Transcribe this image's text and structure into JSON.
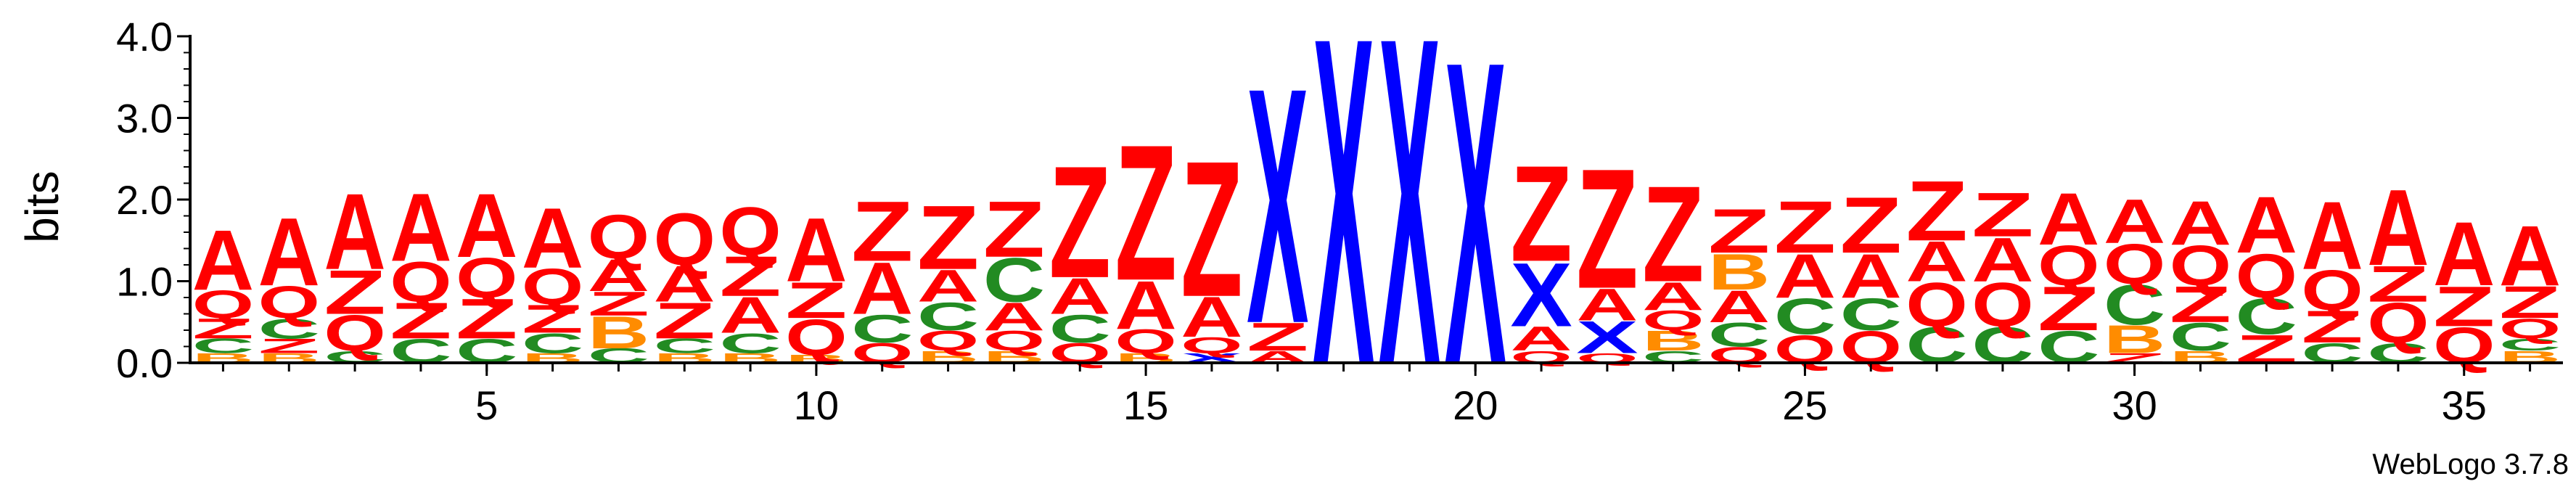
{
  "chart_data": {
    "type": "sequence-logo",
    "ylabel": "bits",
    "ylim": [
      0,
      4.0
    ],
    "xlim": [
      0.5,
      36.5
    ],
    "y_ticks": [
      {
        "value": 0.0,
        "label": "0.0"
      },
      {
        "value": 1.0,
        "label": "1.0"
      },
      {
        "value": 2.0,
        "label": "2.0"
      },
      {
        "value": 3.0,
        "label": "3.0"
      },
      {
        "value": 4.0,
        "label": "4.0"
      }
    ],
    "x_ticks": [
      {
        "value": 5,
        "label": "5"
      },
      {
        "value": 10,
        "label": "10"
      },
      {
        "value": 15,
        "label": "15"
      },
      {
        "value": 20,
        "label": "20"
      },
      {
        "value": 25,
        "label": "25"
      },
      {
        "value": 30,
        "label": "30"
      },
      {
        "value": 35,
        "label": "35"
      }
    ],
    "colors": {
      "A": "#ff0000",
      "Z": "#ff0000",
      "Q": "#ff0000",
      "C": "#228b22",
      "B": "#ff8c00",
      "X": "#0000ff"
    },
    "credit": "WebLogo 3.7.8",
    "positions": [
      {
        "pos": 1,
        "stack": [
          [
            "B",
            0.12
          ],
          [
            "C",
            0.18
          ],
          [
            "Z",
            0.25
          ],
          [
            "Q",
            0.35
          ],
          [
            "A",
            0.75
          ]
        ]
      },
      {
        "pos": 2,
        "stack": [
          [
            "B",
            0.12
          ],
          [
            "Z",
            0.18
          ],
          [
            "C",
            0.25
          ],
          [
            "Q",
            0.4
          ],
          [
            "A",
            0.85
          ]
        ]
      },
      {
        "pos": 3,
        "stack": [
          [
            "C",
            0.15
          ],
          [
            "Q",
            0.45
          ],
          [
            "Z",
            0.55
          ],
          [
            "A",
            0.95
          ]
        ]
      },
      {
        "pos": 4,
        "stack": [
          [
            "C",
            0.3
          ],
          [
            "Z",
            0.45
          ],
          [
            "Q",
            0.5
          ],
          [
            "A",
            0.85
          ]
        ]
      },
      {
        "pos": 5,
        "stack": [
          [
            "C",
            0.3
          ],
          [
            "Z",
            0.5
          ],
          [
            "Q",
            0.5
          ],
          [
            "A",
            0.8
          ]
        ]
      },
      {
        "pos": 6,
        "stack": [
          [
            "B",
            0.12
          ],
          [
            "C",
            0.25
          ],
          [
            "Z",
            0.35
          ],
          [
            "Q",
            0.45
          ],
          [
            "A",
            0.75
          ]
        ]
      },
      {
        "pos": 7,
        "stack": [
          [
            "C",
            0.18
          ],
          [
            "B",
            0.4
          ],
          [
            "Z",
            0.3
          ],
          [
            "A",
            0.4
          ],
          [
            "Q",
            0.55
          ]
        ]
      },
      {
        "pos": 8,
        "stack": [
          [
            "B",
            0.12
          ],
          [
            "C",
            0.18
          ],
          [
            "Z",
            0.45
          ],
          [
            "A",
            0.45
          ],
          [
            "Q",
            0.65
          ]
        ]
      },
      {
        "pos": 9,
        "stack": [
          [
            "B",
            0.12
          ],
          [
            "C",
            0.25
          ],
          [
            "A",
            0.45
          ],
          [
            "Z",
            0.5
          ],
          [
            "Q",
            0.6
          ]
        ]
      },
      {
        "pos": 10,
        "stack": [
          [
            "B",
            0.1
          ],
          [
            "Q",
            0.45
          ],
          [
            "Z",
            0.45
          ],
          [
            "A",
            0.8
          ]
        ]
      },
      {
        "pos": 11,
        "stack": [
          [
            "Q",
            0.25
          ],
          [
            "C",
            0.35
          ],
          [
            "A",
            0.65
          ],
          [
            "Z",
            0.75
          ]
        ]
      },
      {
        "pos": 12,
        "stack": [
          [
            "B",
            0.15
          ],
          [
            "Q",
            0.25
          ],
          [
            "C",
            0.35
          ],
          [
            "A",
            0.4
          ],
          [
            "Z",
            0.8
          ]
        ]
      },
      {
        "pos": 13,
        "stack": [
          [
            "B",
            0.15
          ],
          [
            "Q",
            0.25
          ],
          [
            "A",
            0.35
          ],
          [
            "C",
            0.55
          ],
          [
            "Z",
            0.7
          ]
        ]
      },
      {
        "pos": 14,
        "stack": [
          [
            "Q",
            0.25
          ],
          [
            "C",
            0.35
          ],
          [
            "A",
            0.45
          ],
          [
            "Z",
            1.4
          ]
        ]
      },
      {
        "pos": 15,
        "stack": [
          [
            "B",
            0.12
          ],
          [
            "Q",
            0.3
          ],
          [
            "A",
            0.6
          ],
          [
            "Z",
            1.7
          ]
        ]
      },
      {
        "pos": 16,
        "stack": [
          [
            "X",
            0.12
          ],
          [
            "Q",
            0.2
          ],
          [
            "A",
            0.5
          ],
          [
            "Z",
            1.7
          ]
        ]
      },
      {
        "pos": 17,
        "stack": [
          [
            "A",
            0.15
          ],
          [
            "Z",
            0.35
          ],
          [
            "X",
            2.95
          ]
        ]
      },
      {
        "pos": 18,
        "stack": [
          [
            "X",
            4.1
          ]
        ]
      },
      {
        "pos": 19,
        "stack": [
          [
            "X",
            4.1
          ]
        ]
      },
      {
        "pos": 20,
        "stack": [
          [
            "X",
            3.8
          ]
        ]
      },
      {
        "pos": 21,
        "stack": [
          [
            "Q",
            0.15
          ],
          [
            "A",
            0.3
          ],
          [
            "X",
            0.8
          ],
          [
            "Z",
            1.2
          ]
        ]
      },
      {
        "pos": 22,
        "stack": [
          [
            "Q",
            0.12
          ],
          [
            "X",
            0.4
          ],
          [
            "A",
            0.4
          ],
          [
            "Z",
            1.5
          ]
        ]
      },
      {
        "pos": 23,
        "stack": [
          [
            "C",
            0.15
          ],
          [
            "B",
            0.25
          ],
          [
            "Q",
            0.25
          ],
          [
            "A",
            0.35
          ],
          [
            "Z",
            1.2
          ]
        ]
      },
      {
        "pos": 24,
        "stack": [
          [
            "Q",
            0.2
          ],
          [
            "C",
            0.3
          ],
          [
            "A",
            0.4
          ],
          [
            "B",
            0.45
          ],
          [
            "Z",
            0.55
          ]
        ]
      },
      {
        "pos": 25,
        "stack": [
          [
            "Q",
            0.35
          ],
          [
            "C",
            0.45
          ],
          [
            "A",
            0.55
          ],
          [
            "Z",
            0.65
          ]
        ]
      },
      {
        "pos": 26,
        "stack": [
          [
            "Q",
            0.4
          ],
          [
            "C",
            0.4
          ],
          [
            "A",
            0.55
          ],
          [
            "Z",
            0.7
          ]
        ]
      },
      {
        "pos": 27,
        "stack": [
          [
            "C",
            0.45
          ],
          [
            "Q",
            0.55
          ],
          [
            "A",
            0.5
          ],
          [
            "Z",
            0.75
          ]
        ]
      },
      {
        "pos": 28,
        "stack": [
          [
            "C",
            0.45
          ],
          [
            "Q",
            0.55
          ],
          [
            "A",
            0.55
          ],
          [
            "Z",
            0.55
          ]
        ]
      },
      {
        "pos": 29,
        "stack": [
          [
            "C",
            0.4
          ],
          [
            "Z",
            0.55
          ],
          [
            "Q",
            0.5
          ],
          [
            "A",
            0.65
          ]
        ]
      },
      {
        "pos": 30,
        "stack": [
          [
            "Z",
            0.12
          ],
          [
            "B",
            0.35
          ],
          [
            "C",
            0.5
          ],
          [
            "Q",
            0.5
          ],
          [
            "A",
            0.55
          ]
        ]
      },
      {
        "pos": 31,
        "stack": [
          [
            "B",
            0.15
          ],
          [
            "C",
            0.35
          ],
          [
            "Z",
            0.45
          ],
          [
            "Q",
            0.5
          ],
          [
            "A",
            0.55
          ]
        ]
      },
      {
        "pos": 32,
        "stack": [
          [
            "Z",
            0.35
          ],
          [
            "C",
            0.45
          ],
          [
            "Q",
            0.55
          ],
          [
            "A",
            0.7
          ]
        ]
      },
      {
        "pos": 33,
        "stack": [
          [
            "C",
            0.25
          ],
          [
            "Z",
            0.4
          ],
          [
            "Q",
            0.5
          ],
          [
            "A",
            0.85
          ]
        ]
      },
      {
        "pos": 34,
        "stack": [
          [
            "C",
            0.25
          ],
          [
            "Q",
            0.5
          ],
          [
            "Z",
            0.45
          ],
          [
            "A",
            0.95
          ]
        ]
      },
      {
        "pos": 35,
        "stack": [
          [
            "Q",
            0.45
          ],
          [
            "Z",
            0.5
          ],
          [
            "A",
            0.8
          ]
        ]
      },
      {
        "pos": 36,
        "stack": [
          [
            "B",
            0.15
          ],
          [
            "C",
            0.15
          ],
          [
            "Q",
            0.25
          ],
          [
            "Z",
            0.4
          ],
          [
            "A",
            0.75
          ]
        ]
      }
    ]
  }
}
